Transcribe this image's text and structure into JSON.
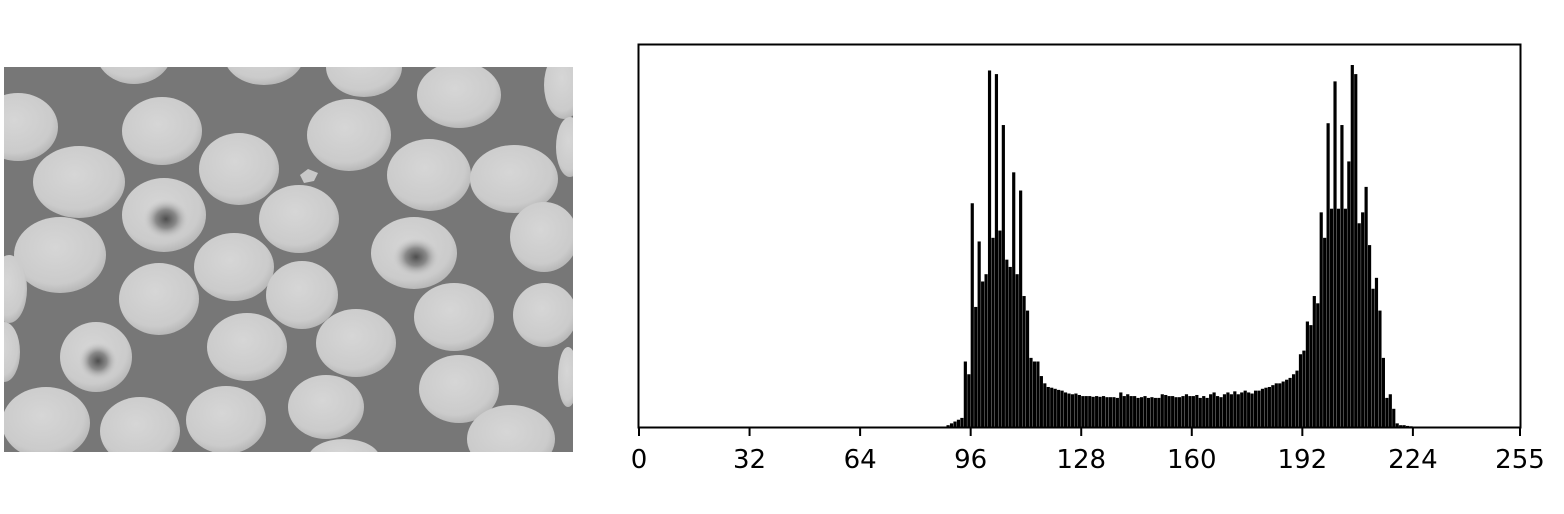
{
  "image_panel": {
    "background_color": "#777777",
    "cell_color": "#cfcfcf",
    "stained_center_color": "#5a5a5a"
  },
  "chart_data": {
    "type": "bar",
    "title": "",
    "xlabel": "",
    "ylabel": "",
    "xlim": [
      0,
      255
    ],
    "ylim": [
      0,
      1.05
    ],
    "grid": false,
    "y_ticks_shown": false,
    "bar_color": "#000000",
    "x_ticks": [
      "0",
      "32",
      "64",
      "96",
      "128",
      "160",
      "192",
      "224",
      "255"
    ],
    "x": [
      89,
      90,
      91,
      92,
      93,
      94,
      95,
      96,
      97,
      98,
      99,
      100,
      101,
      102,
      103,
      104,
      105,
      106,
      107,
      108,
      109,
      110,
      111,
      112,
      113,
      114,
      115,
      116,
      117,
      118,
      119,
      120,
      121,
      122,
      123,
      124,
      125,
      126,
      127,
      128,
      129,
      130,
      131,
      132,
      133,
      134,
      135,
      136,
      137,
      138,
      139,
      140,
      141,
      142,
      143,
      144,
      145,
      146,
      147,
      148,
      149,
      150,
      151,
      152,
      153,
      154,
      155,
      156,
      157,
      158,
      159,
      160,
      161,
      162,
      163,
      164,
      165,
      166,
      167,
      168,
      169,
      170,
      171,
      172,
      173,
      174,
      175,
      176,
      177,
      178,
      179,
      180,
      181,
      182,
      183,
      184,
      185,
      186,
      187,
      188,
      189,
      190,
      191,
      192,
      193,
      194,
      195,
      196,
      197,
      198,
      199,
      200,
      201,
      202,
      203,
      204,
      205,
      206,
      207,
      208,
      209,
      210,
      211,
      212,
      213,
      214,
      215,
      216,
      217,
      218,
      219,
      220,
      221,
      222,
      223
    ],
    "values": [
      0.005,
      0.01,
      0.015,
      0.02,
      0.025,
      0.18,
      0.145,
      0.615,
      0.33,
      0.51,
      0.4,
      0.42,
      0.98,
      0.52,
      0.97,
      0.54,
      0.83,
      0.46,
      0.44,
      0.7,
      0.42,
      0.65,
      0.36,
      0.32,
      0.19,
      0.18,
      0.18,
      0.14,
      0.12,
      0.11,
      0.108,
      0.105,
      0.102,
      0.1,
      0.095,
      0.092,
      0.09,
      0.092,
      0.088,
      0.085,
      0.085,
      0.085,
      0.083,
      0.085,
      0.083,
      0.085,
      0.082,
      0.082,
      0.082,
      0.08,
      0.095,
      0.085,
      0.09,
      0.085,
      0.085,
      0.08,
      0.082,
      0.085,
      0.08,
      0.082,
      0.08,
      0.08,
      0.09,
      0.088,
      0.085,
      0.085,
      0.082,
      0.082,
      0.085,
      0.09,
      0.085,
      0.085,
      0.088,
      0.08,
      0.085,
      0.08,
      0.09,
      0.095,
      0.085,
      0.082,
      0.09,
      0.095,
      0.09,
      0.098,
      0.09,
      0.095,
      0.1,
      0.095,
      0.092,
      0.1,
      0.1,
      0.105,
      0.108,
      0.11,
      0.115,
      0.12,
      0.12,
      0.125,
      0.13,
      0.135,
      0.145,
      0.155,
      0.2,
      0.21,
      0.29,
      0.28,
      0.36,
      0.34,
      0.59,
      0.52,
      0.835,
      0.6,
      0.95,
      0.6,
      0.83,
      0.6,
      0.73,
      0.995,
      0.97,
      0.56,
      0.59,
      0.66,
      0.5,
      0.38,
      0.41,
      0.32,
      0.19,
      0.08,
      0.09,
      0.05,
      0.01,
      0.005,
      0.005,
      0.003,
      0.002
    ]
  }
}
